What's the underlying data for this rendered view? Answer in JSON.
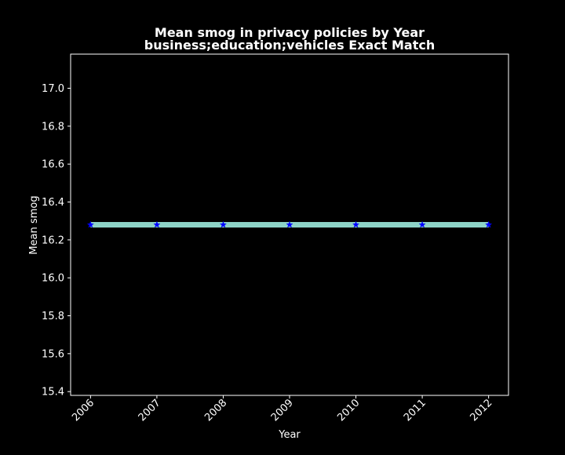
{
  "chart_data": {
    "type": "line",
    "title_line1": "Mean smog in privacy policies by Year",
    "title_line2": "business;education;vehicles Exact Match",
    "xlabel": "Year",
    "ylabel": "Mean smog",
    "x": [
      2006,
      2007,
      2008,
      2009,
      2010,
      2011,
      2012
    ],
    "x_tick_labels": [
      "2006",
      "2007",
      "2008",
      "2009",
      "2010",
      "2011",
      "2012"
    ],
    "series": [
      {
        "values": [
          16.28,
          16.28,
          16.28,
          16.28,
          16.28,
          16.28,
          16.28
        ],
        "line_color": "#8dd3c7",
        "marker": "star",
        "marker_color": "#0000ff"
      }
    ],
    "ylim": [
      15.38,
      17.18
    ],
    "xlim": [
      2005.7,
      2012.3
    ],
    "y_ticks": [
      15.4,
      15.6,
      15.8,
      16.0,
      16.2,
      16.4,
      16.6,
      16.8,
      17.0
    ],
    "y_tick_labels": [
      "15.4",
      "15.6",
      "15.8",
      "16.0",
      "16.2",
      "16.4",
      "16.6",
      "16.8",
      "17.0"
    ],
    "grid": false,
    "legend": "none",
    "colors": {
      "background": "#000000",
      "foreground": "#ffffff",
      "axes_edge": "#ffffff"
    }
  }
}
